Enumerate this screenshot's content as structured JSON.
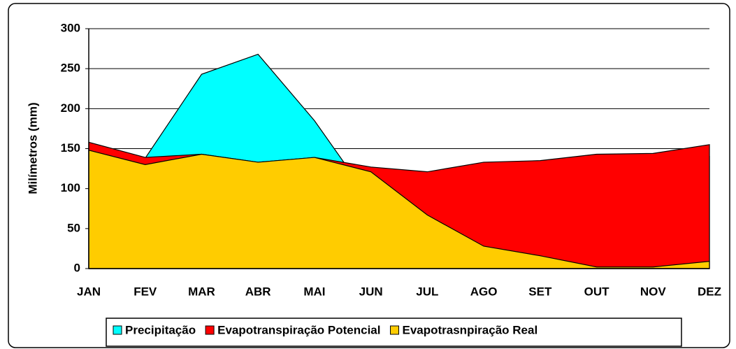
{
  "chart_data": {
    "type": "area",
    "y_label": "Milímetros (mm)",
    "categories": [
      "JAN",
      "FEV",
      "MAR",
      "ABR",
      "MAI",
      "JUN",
      "JUL",
      "AGO",
      "SET",
      "OUT",
      "NOV",
      "DEZ"
    ],
    "series": [
      {
        "name": "Precipitação",
        "color": "#00ffff",
        "values": [
          150,
          138,
          243,
          268,
          185,
          85,
          50,
          30,
          40,
          70,
          110,
          140
        ]
      },
      {
        "name": "Evapotranspiração Potencial",
        "color": "#ff0000",
        "values": [
          158,
          139,
          143,
          133,
          139,
          127,
          121,
          133,
          135,
          143,
          144,
          155
        ]
      },
      {
        "name": "Evapotrasnpiração Real",
        "color": "#ffcc00",
        "values": [
          148,
          130,
          143,
          133,
          139,
          121,
          67,
          28,
          16,
          2,
          2,
          9
        ]
      }
    ],
    "ylim": [
      0,
      300
    ],
    "yticks": [
      0,
      50,
      100,
      150,
      200,
      250,
      300
    ],
    "grid": true,
    "legend": "bottom"
  }
}
